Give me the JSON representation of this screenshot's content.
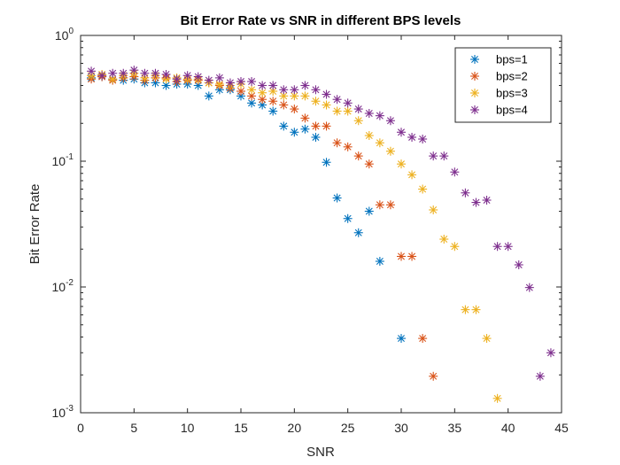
{
  "chart_data": {
    "type": "scatter",
    "title": "Bit Error Rate vs SNR in different BPS levels",
    "xlabel": "SNR",
    "ylabel": "Bit Error Rate",
    "xlim": [
      0,
      45
    ],
    "ylim": [
      0.001,
      1
    ],
    "yscale": "log",
    "xticks": [
      "0",
      "5",
      "10",
      "15",
      "20",
      "25",
      "30",
      "35",
      "40",
      "45"
    ],
    "yticks": [
      {
        "base": "10",
        "exp": "0"
      },
      {
        "base": "10",
        "exp": "-1"
      },
      {
        "base": "10",
        "exp": "-2"
      },
      {
        "base": "10",
        "exp": "-3"
      }
    ],
    "grid": false,
    "legend_position": "top-right",
    "marker": "asterisk",
    "series": [
      {
        "name": "bps=1",
        "color": "#0072BD",
        "points": [
          [
            1,
            0.46
          ],
          [
            2,
            0.47
          ],
          [
            3,
            0.45
          ],
          [
            4,
            0.44
          ],
          [
            5,
            0.45
          ],
          [
            6,
            0.42
          ],
          [
            7,
            0.42
          ],
          [
            8,
            0.4
          ],
          [
            9,
            0.41
          ],
          [
            10,
            0.41
          ],
          [
            11,
            0.4
          ],
          [
            12,
            0.33
          ],
          [
            13,
            0.37
          ],
          [
            14,
            0.37
          ],
          [
            15,
            0.33
          ],
          [
            16,
            0.29
          ],
          [
            17,
            0.28
          ],
          [
            18,
            0.25
          ],
          [
            19,
            0.19
          ],
          [
            20,
            0.17
          ],
          [
            21,
            0.18
          ],
          [
            22,
            0.155
          ],
          [
            23,
            0.098
          ],
          [
            24,
            0.051
          ],
          [
            25,
            0.035
          ],
          [
            26,
            0.027
          ],
          [
            27,
            0.04
          ],
          [
            28,
            0.016
          ],
          [
            30,
            0.0039
          ]
        ]
      },
      {
        "name": "bps=2",
        "color": "#D95319",
        "points": [
          [
            1,
            0.45
          ],
          [
            2,
            0.47
          ],
          [
            3,
            0.44
          ],
          [
            4,
            0.46
          ],
          [
            5,
            0.47
          ],
          [
            6,
            0.44
          ],
          [
            7,
            0.46
          ],
          [
            8,
            0.46
          ],
          [
            9,
            0.43
          ],
          [
            10,
            0.44
          ],
          [
            11,
            0.44
          ],
          [
            12,
            0.42
          ],
          [
            13,
            0.4
          ],
          [
            14,
            0.38
          ],
          [
            15,
            0.36
          ],
          [
            16,
            0.33
          ],
          [
            17,
            0.31
          ],
          [
            18,
            0.3
          ],
          [
            19,
            0.28
          ],
          [
            20,
            0.26
          ],
          [
            21,
            0.22
          ],
          [
            22,
            0.19
          ],
          [
            23,
            0.19
          ],
          [
            24,
            0.14
          ],
          [
            25,
            0.13
          ],
          [
            26,
            0.11
          ],
          [
            27,
            0.095
          ],
          [
            28,
            0.045
          ],
          [
            29,
            0.045
          ],
          [
            30,
            0.0175
          ],
          [
            31,
            0.0175
          ],
          [
            32,
            0.0039
          ],
          [
            33,
            0.00195
          ]
        ]
      },
      {
        "name": "bps=3",
        "color": "#EDB120",
        "points": [
          [
            1,
            0.48
          ],
          [
            2,
            0.49
          ],
          [
            3,
            0.45
          ],
          [
            4,
            0.48
          ],
          [
            5,
            0.5
          ],
          [
            6,
            0.46
          ],
          [
            7,
            0.48
          ],
          [
            8,
            0.45
          ],
          [
            9,
            0.46
          ],
          [
            10,
            0.45
          ],
          [
            11,
            0.45
          ],
          [
            12,
            0.42
          ],
          [
            13,
            0.41
          ],
          [
            14,
            0.4
          ],
          [
            15,
            0.41
          ],
          [
            16,
            0.37
          ],
          [
            17,
            0.35
          ],
          [
            18,
            0.36
          ],
          [
            19,
            0.33
          ],
          [
            20,
            0.33
          ],
          [
            21,
            0.33
          ],
          [
            22,
            0.3
          ],
          [
            23,
            0.28
          ],
          [
            24,
            0.25
          ],
          [
            25,
            0.25
          ],
          [
            26,
            0.21
          ],
          [
            27,
            0.16
          ],
          [
            28,
            0.14
          ],
          [
            29,
            0.12
          ],
          [
            30,
            0.095
          ],
          [
            31,
            0.078
          ],
          [
            32,
            0.06
          ],
          [
            33,
            0.041
          ],
          [
            34,
            0.024
          ],
          [
            35,
            0.021
          ],
          [
            36,
            0.0066
          ],
          [
            37,
            0.0066
          ],
          [
            38,
            0.0039
          ],
          [
            39,
            0.0013
          ]
        ]
      },
      {
        "name": "bps=4",
        "color": "#7E2F8E",
        "points": [
          [
            1,
            0.52
          ],
          [
            2,
            0.48
          ],
          [
            3,
            0.5
          ],
          [
            4,
            0.5
          ],
          [
            5,
            0.53
          ],
          [
            6,
            0.5
          ],
          [
            7,
            0.5
          ],
          [
            8,
            0.49
          ],
          [
            9,
            0.45
          ],
          [
            10,
            0.48
          ],
          [
            11,
            0.47
          ],
          [
            12,
            0.44
          ],
          [
            13,
            0.46
          ],
          [
            14,
            0.42
          ],
          [
            15,
            0.43
          ],
          [
            16,
            0.43
          ],
          [
            17,
            0.4
          ],
          [
            18,
            0.4
          ],
          [
            19,
            0.37
          ],
          [
            20,
            0.37
          ],
          [
            21,
            0.4
          ],
          [
            22,
            0.37
          ],
          [
            23,
            0.34
          ],
          [
            24,
            0.31
          ],
          [
            25,
            0.29
          ],
          [
            26,
            0.26
          ],
          [
            27,
            0.24
          ],
          [
            28,
            0.23
          ],
          [
            29,
            0.21
          ],
          [
            30,
            0.17
          ],
          [
            31,
            0.155
          ],
          [
            32,
            0.15
          ],
          [
            33,
            0.11
          ],
          [
            34,
            0.11
          ],
          [
            35,
            0.082
          ],
          [
            36,
            0.056
          ],
          [
            37,
            0.047
          ],
          [
            38,
            0.049
          ],
          [
            39,
            0.021
          ],
          [
            40,
            0.021
          ],
          [
            41,
            0.015
          ],
          [
            42,
            0.0099
          ],
          [
            43,
            0.00195
          ],
          [
            44,
            0.003
          ]
        ]
      }
    ]
  }
}
